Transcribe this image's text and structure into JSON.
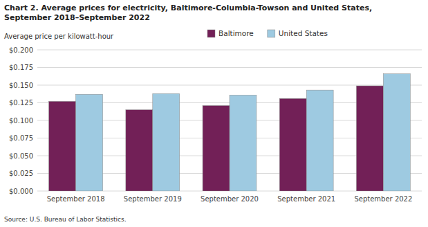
{
  "chart_data": {
    "type": "bar",
    "title": "Chart 2. Average prices for electricity, Baltimore-Columbia-Towson and United States,",
    "subtitle": "September 2018–September 2022",
    "y_label": "Average price per kilowatt-hour",
    "source": "Source: U.S. Bureau of Labor Statistics.",
    "categories": [
      "September 2018",
      "September 2019",
      "September 2020",
      "September 2021",
      "September 2022"
    ],
    "series": [
      {
        "name": "Baltimore",
        "color": "#722057",
        "values": [
          0.127,
          0.115,
          0.121,
          0.131,
          0.149
        ]
      },
      {
        "name": "United States",
        "color": "#9ecae1",
        "values": [
          0.137,
          0.138,
          0.136,
          0.143,
          0.166
        ]
      }
    ],
    "ylim": [
      0.0,
      0.2
    ],
    "yticks": [
      {
        "value": 0.0,
        "label": "$0.000"
      },
      {
        "value": 0.025,
        "label": "$0.025"
      },
      {
        "value": 0.05,
        "label": "$0.050"
      },
      {
        "value": 0.075,
        "label": "$0.075"
      },
      {
        "value": 0.1,
        "label": "$0.100"
      },
      {
        "value": 0.125,
        "label": "$0.125"
      },
      {
        "value": 0.15,
        "label": "$0.150"
      },
      {
        "value": 0.175,
        "label": "$0.175"
      },
      {
        "value": 0.2,
        "label": "$0.200"
      }
    ],
    "grid": true,
    "legend": "top"
  }
}
